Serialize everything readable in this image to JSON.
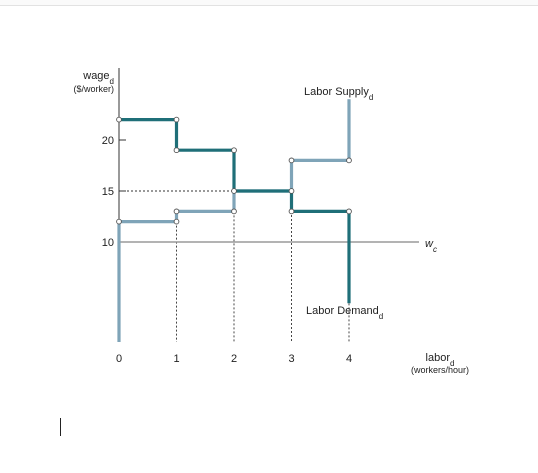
{
  "chart_data": {
    "type": "line",
    "ylabel": "wage",
    "ylabel_sub": "d",
    "yunit": "($/worker)",
    "xlabel": "labor",
    "xlabel_sub": "d",
    "xunit": "(workers/hour)",
    "xlim": [
      0,
      4.5
    ],
    "ylim": [
      0,
      25
    ],
    "x_ticks": [
      "0",
      "1",
      "2",
      "3",
      "4"
    ],
    "y_ticks": [
      {
        "value": 10,
        "label": "10"
      },
      {
        "value": 15,
        "label": "15"
      },
      {
        "value": 20,
        "label": "20"
      }
    ],
    "series": [
      {
        "name": "Labor Demand",
        "name_sub": "d",
        "color": "#1f6f78",
        "steps": [
          {
            "x0": 0,
            "x1": 1,
            "y": 22
          },
          {
            "x0": 1,
            "x1": 2,
            "y": 19
          },
          {
            "x0": 2,
            "x1": 3,
            "y": 15
          },
          {
            "x0": 3,
            "x1": 4,
            "y": 13
          }
        ],
        "tail_bottom": 4
      },
      {
        "name": "Labor Supply",
        "name_sub": "d",
        "color": "#7fa4b8",
        "steps": [
          {
            "x0": 0,
            "x1": 1,
            "y": 12
          },
          {
            "x0": 1,
            "x1": 2,
            "y": 13
          },
          {
            "x0": 2,
            "x1": 3,
            "y": 15
          },
          {
            "x0": 3,
            "x1": 4,
            "y": 18
          }
        ],
        "tail_top": 24
      }
    ],
    "reference_line": {
      "label": "w",
      "label_sub": "c",
      "y": 10
    },
    "equilibrium": {
      "y": 15,
      "x_range": [
        2,
        3
      ]
    },
    "grid": false,
    "legend": "none"
  }
}
